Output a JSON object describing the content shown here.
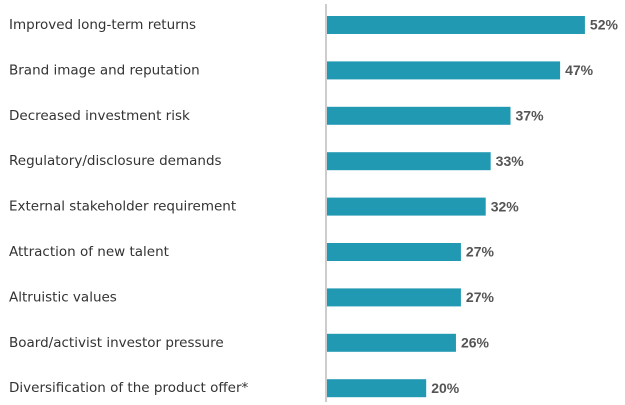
{
  "chart_data": {
    "type": "bar",
    "orientation": "horizontal",
    "categories": [
      "Improved long-term returns",
      "Brand image and reputation",
      "Decreased investment risk",
      "Regulatory/disclosure demands",
      "External stakeholder requirement",
      "Attraction of new talent",
      "Altruistic values",
      "Board/activist investor pressure",
      "Diversification of the product offer*"
    ],
    "values": [
      52,
      47,
      37,
      33,
      32,
      27,
      27,
      26,
      20
    ],
    "value_labels": [
      "52%",
      "47%",
      "37%",
      "33%",
      "32%",
      "27%",
      "27%",
      "26%",
      "20%"
    ],
    "color": "#2299b3"
  }
}
